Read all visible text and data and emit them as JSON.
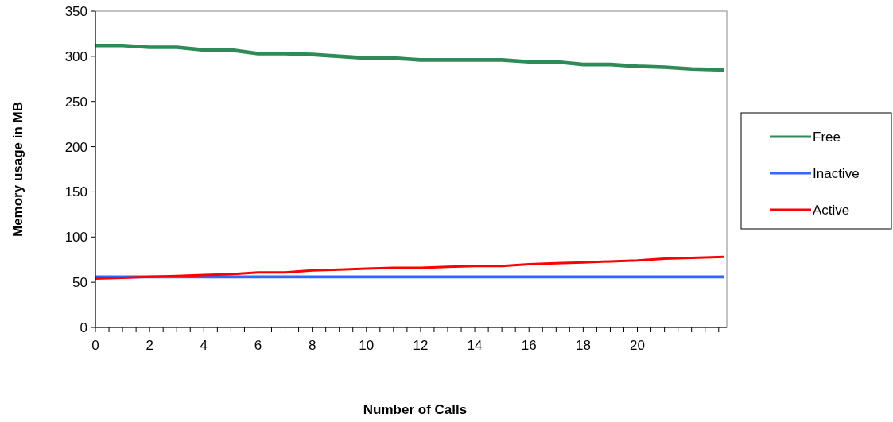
{
  "chart_data": {
    "type": "line",
    "xlabel": "Number of Calls",
    "ylabel": "Memory usage in MB",
    "xlim": [
      0,
      23.3
    ],
    "ylim": [
      0,
      350
    ],
    "xticks": [
      0,
      {
        "value": 0.5,
        "label": null
      },
      {
        "value": 1,
        "label": null
      },
      {
        "value": 1.5,
        "label": null
      },
      2,
      {
        "value": 2.5,
        "label": null
      },
      {
        "value": 3,
        "label": null
      },
      {
        "value": 3.5,
        "label": null
      },
      4,
      {
        "value": 4.5,
        "label": null
      },
      {
        "value": 5,
        "label": null
      },
      {
        "value": 5.5,
        "label": null
      },
      6,
      {
        "value": 6.5,
        "label": null
      },
      {
        "value": 7,
        "label": null
      },
      {
        "value": 7.5,
        "label": null
      },
      8,
      {
        "value": 8.5,
        "label": null
      },
      {
        "value": 9,
        "label": null
      },
      {
        "value": 9.5,
        "label": null
      },
      10,
      {
        "value": 10.5,
        "label": null
      },
      {
        "value": 11,
        "label": null
      },
      {
        "value": 11.5,
        "label": null
      },
      12,
      {
        "value": 12.5,
        "label": null
      },
      {
        "value": 13,
        "label": null
      },
      {
        "value": 13.5,
        "label": null
      },
      14,
      {
        "value": 14.5,
        "label": null
      },
      {
        "value": 15,
        "label": null
      },
      {
        "value": 15.5,
        "label": null
      },
      16,
      {
        "value": 16.5,
        "label": null
      },
      {
        "value": 17,
        "label": null
      },
      {
        "value": 17.5,
        "label": null
      },
      18,
      {
        "value": 18.5,
        "label": null
      },
      {
        "value": 19,
        "label": null
      },
      {
        "value": 19.5,
        "label": null
      },
      20,
      {
        "value": 20.5,
        "label": null
      },
      {
        "value": 21,
        "label": null
      },
      {
        "value": 21.5,
        "label": null
      },
      {
        "value": 22,
        "label": null
      },
      {
        "value": 22.5,
        "label": null
      },
      {
        "value": 23,
        "label": null
      }
    ],
    "yticks": [
      0,
      50,
      100,
      150,
      200,
      250,
      300,
      350
    ],
    "x": [
      0,
      1,
      2,
      3,
      4,
      5,
      6,
      7,
      8,
      9,
      10,
      11,
      12,
      13,
      14,
      15,
      16,
      17,
      18,
      19,
      20,
      21,
      22,
      23.2
    ],
    "series": [
      {
        "name": "Free",
        "color": "#2e8b57",
        "values": [
          312,
          312,
          310,
          310,
          307,
          307,
          303,
          303,
          302,
          300,
          298,
          298,
          296,
          296,
          296,
          296,
          294,
          294,
          291,
          291,
          289,
          288,
          286,
          285
        ]
      },
      {
        "name": "Inactive",
        "color": "#3366ff",
        "values": [
          56,
          56,
          56,
          56,
          56,
          56,
          56,
          56,
          56,
          56,
          56,
          56,
          56,
          56,
          56,
          56,
          56,
          56,
          56,
          56,
          56,
          56,
          56,
          56
        ]
      },
      {
        "name": "Active",
        "color": "#ff0000",
        "values": [
          54,
          55,
          56,
          57,
          58,
          59,
          61,
          61,
          63,
          64,
          65,
          66,
          66,
          67,
          68,
          68,
          70,
          71,
          72,
          73,
          74,
          76,
          77,
          78
        ]
      }
    ],
    "legend": "right",
    "grid": false,
    "marker": "none",
    "line_style": "solid"
  }
}
